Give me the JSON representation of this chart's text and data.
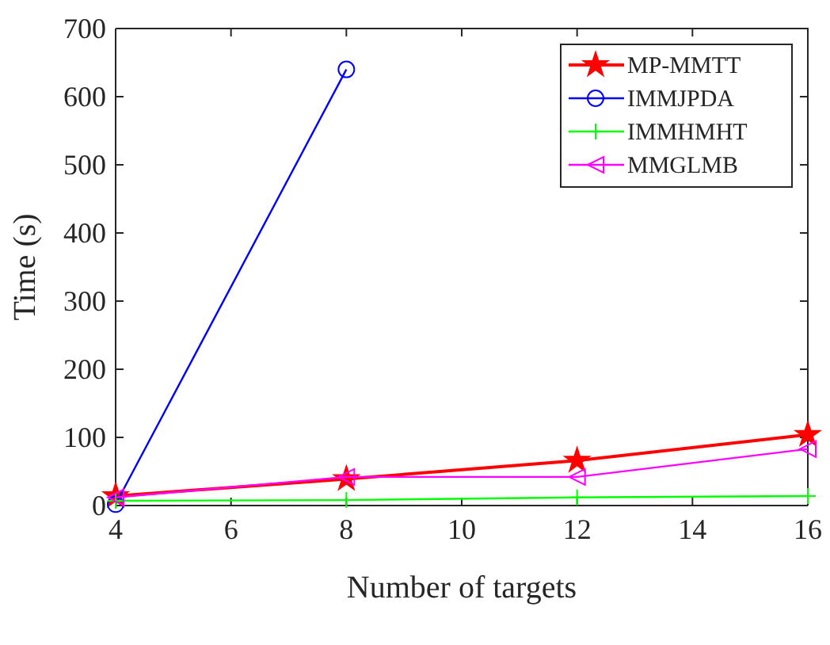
{
  "chart_data": {
    "type": "line",
    "xlabel": "Number of targets",
    "ylabel": "Time (s)",
    "x": [
      4,
      8,
      12,
      16
    ],
    "series": [
      {
        "name": "MP-MMTT",
        "color": "#ff0000",
        "values": [
          14,
          39,
          66,
          104
        ],
        "marker": "star"
      },
      {
        "name": "IMMJPDA",
        "color": "#0000ff",
        "values": [
          2,
          640,
          null,
          null
        ],
        "marker": "circle"
      },
      {
        "name": "IMMHMHT",
        "color": "#00ff00",
        "values": [
          7,
          8,
          12,
          14
        ],
        "marker": "cross"
      },
      {
        "name": "MMGLMB",
        "color": "#ff00ff",
        "values": [
          12,
          42,
          42,
          83
        ],
        "marker": "triangle"
      }
    ],
    "xlim": [
      4,
      16
    ],
    "xticks": [
      4,
      6,
      8,
      10,
      12,
      14,
      16
    ],
    "ylim": [
      0,
      700
    ],
    "yticks": [
      0,
      100,
      200,
      300,
      400,
      500,
      600,
      700
    ],
    "grid": false,
    "legend": "top right",
    "line_style": "solid"
  }
}
